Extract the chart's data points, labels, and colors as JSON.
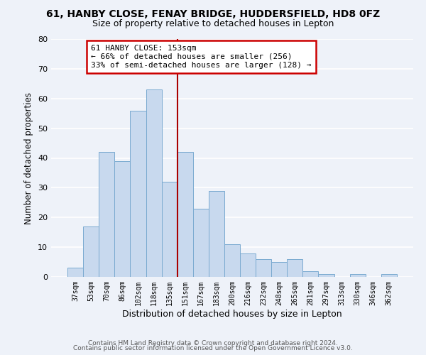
{
  "title1": "61, HANBY CLOSE, FENAY BRIDGE, HUDDERSFIELD, HD8 0FZ",
  "title2": "Size of property relative to detached houses in Lepton",
  "xlabel": "Distribution of detached houses by size in Lepton",
  "ylabel": "Number of detached properties",
  "bar_labels": [
    "37sqm",
    "53sqm",
    "70sqm",
    "86sqm",
    "102sqm",
    "118sqm",
    "135sqm",
    "151sqm",
    "167sqm",
    "183sqm",
    "200sqm",
    "216sqm",
    "232sqm",
    "248sqm",
    "265sqm",
    "281sqm",
    "297sqm",
    "313sqm",
    "330sqm",
    "346sqm",
    "362sqm"
  ],
  "bar_values": [
    3,
    17,
    42,
    39,
    56,
    63,
    32,
    42,
    23,
    29,
    11,
    8,
    6,
    5,
    6,
    2,
    1,
    0,
    1,
    0,
    1
  ],
  "bar_color": "#c8d9ee",
  "bar_edge_color": "#7aaad0",
  "vline_color": "#aa0000",
  "annotation_line1": "61 HANBY CLOSE: 153sqm",
  "annotation_line2": "← 66% of detached houses are smaller (256)",
  "annotation_line3": "33% of semi-detached houses are larger (128) →",
  "annotation_box_color": "#ffffff",
  "annotation_box_edge_color": "#cc0000",
  "ylim": [
    0,
    80
  ],
  "yticks": [
    0,
    10,
    20,
    30,
    40,
    50,
    60,
    70,
    80
  ],
  "footer1": "Contains HM Land Registry data © Crown copyright and database right 2024.",
  "footer2": "Contains public sector information licensed under the Open Government Licence v3.0.",
  "background_color": "#eef2f9",
  "grid_color": "#ffffff"
}
